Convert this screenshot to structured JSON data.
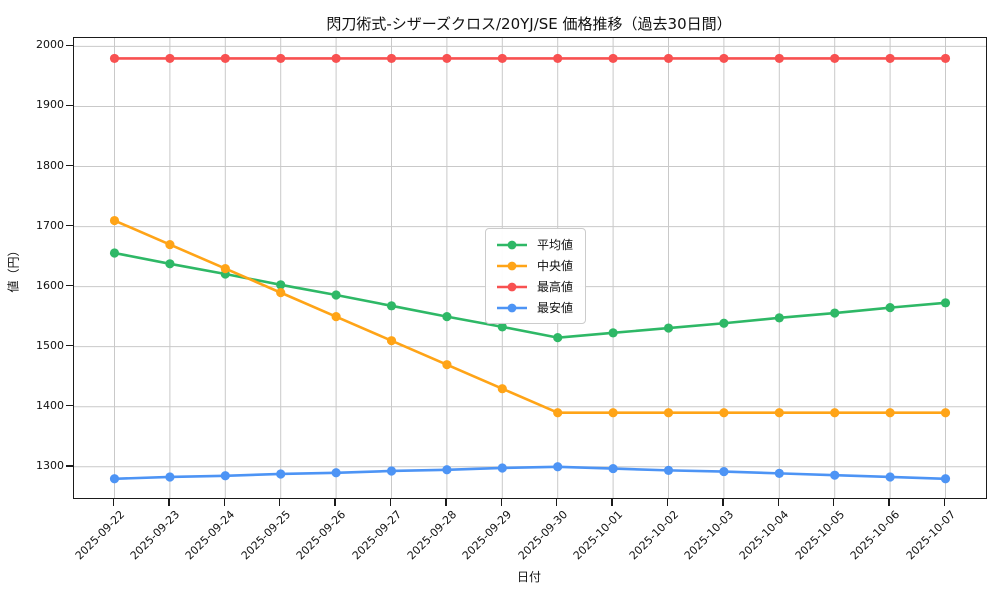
{
  "title": "閃刀術式-シザーズクロス/20YJ/SE 価格推移（過去30日間）",
  "chart_data": {
    "type": "line",
    "title": "閃刀術式-シザーズクロス/20YJ/SE 価格推移（過去30日間）",
    "xlabel": "日付",
    "ylabel": "値（円）",
    "x": [
      "2025-09-22",
      "2025-09-23",
      "2025-09-24",
      "2025-09-25",
      "2025-09-26",
      "2025-09-27",
      "2025-09-28",
      "2025-09-29",
      "2025-09-30",
      "2025-10-01",
      "2025-10-02",
      "2025-10-03",
      "2025-10-04",
      "2025-10-05",
      "2025-10-06",
      "2025-10-07"
    ],
    "series": [
      {
        "key": "average",
        "name": "平均値",
        "color": "#2eb866",
        "values": [
          1656,
          1638,
          1621,
          1603,
          1586,
          1568,
          1550,
          1533,
          1515,
          1523,
          1531,
          1539,
          1548,
          1556,
          1565,
          1573
        ]
      },
      {
        "key": "median",
        "name": "中央値",
        "color": "#ffa417",
        "values": [
          1710,
          1670,
          1630,
          1590,
          1550,
          1510,
          1470,
          1430,
          1390,
          1390,
          1390,
          1390,
          1390,
          1390,
          1390,
          1390
        ]
      },
      {
        "key": "max",
        "name": "最高値",
        "color": "#f85151",
        "values": [
          1980,
          1980,
          1980,
          1980,
          1980,
          1980,
          1980,
          1980,
          1980,
          1980,
          1980,
          1980,
          1980,
          1980,
          1980,
          1980
        ]
      },
      {
        "key": "min",
        "name": "最安値",
        "color": "#4d94f5",
        "values": [
          1280,
          1283,
          1285,
          1288,
          1290,
          1293,
          1295,
          1298,
          1300,
          1297,
          1294,
          1292,
          1289,
          1286,
          1283,
          1280
        ]
      }
    ],
    "yticks": [
      1300,
      1400,
      1500,
      1600,
      1700,
      1800,
      1900,
      2000
    ],
    "ylim": [
      1248,
      2014
    ],
    "grid": true,
    "legend_position": "center",
    "marker": "circle"
  },
  "colors": {
    "grid": "#c9c9c9",
    "axis": "#1b1b1b",
    "background": "#ffffff"
  }
}
